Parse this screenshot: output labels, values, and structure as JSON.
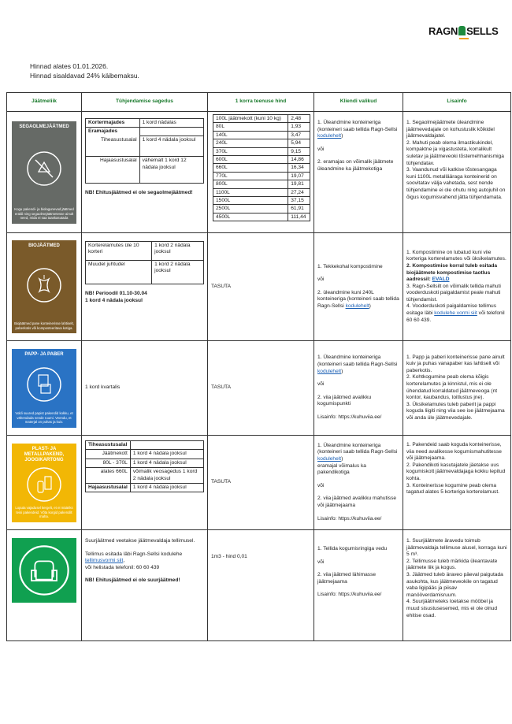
{
  "brand": {
    "logo_text_left": "RAGN",
    "logo_text_right": "SELLS"
  },
  "intro": {
    "line1": "Hinnad alates 01.01.2026.",
    "line2": "Hinnad sisaldavad 24% käibemaksu."
  },
  "headers": [
    "Jäätmeliik",
    "Tühjendamise sagedus",
    "1 korra teenuse hind",
    "Kliendi valikud",
    "Lisainfo"
  ],
  "colors": {
    "header_green": "#1a7a2c",
    "mixed": "#666a66",
    "bio": "#7a5a2a",
    "paper": "#2a73c4",
    "packaging": "#f2b705",
    "bulky": "#10a050",
    "link": "#1a5fb4"
  },
  "rows": [
    {
      "badge": {
        "title": "SEGAOLMEJÄÄTMED",
        "desc": "Kogu pakendi- ja biolagunevad jäätmed eraldi ning segaolmejäätmetesse ainult need, mida ei saa taaskasutada",
        "icon": "no-recycle-icon"
      },
      "freq": {
        "rows": [
          [
            "Kortermajades",
            "1 kord nädalas"
          ],
          [
            "Eramajades",
            ""
          ],
          [
            "Tiheasustusalal",
            "1 kord 4 nädala jooksul"
          ],
          [
            "Hajaasustusalal",
            "vähemalt 1 kord 12 nädala jooksul"
          ]
        ],
        "note": "NB! Ehitusjäätmed ei ole segaolmejäätmed!"
      },
      "prices": [
        [
          "100L jäätmekott (kuni 10 kg)",
          "2,48"
        ],
        [
          "80L",
          "1,93"
        ],
        [
          "140L",
          "3,47"
        ],
        [
          "240L",
          "5,94"
        ],
        [
          "370L",
          "9,15"
        ],
        [
          "600L",
          "14,86"
        ],
        [
          "660L",
          "16,34"
        ],
        [
          "770L",
          "19,07"
        ],
        [
          "800L",
          "19,81"
        ],
        [
          "1100L",
          "27,24"
        ],
        [
          "1500L",
          "37,15"
        ],
        [
          "2500L",
          "61,91"
        ],
        [
          "4500L",
          "111,44"
        ]
      ],
      "options": {
        "p1": "1. Üleandmine konteineriga (konteineri saab tellida Ragn-Sellsi",
        "link": "kodulehelt",
        "p1_end": ")",
        "or": "või",
        "p2": "2. eramajas on võimalik jäätmete üleandmine ka jäätmekotiga"
      },
      "info": [
        "1. Segaolmejäätmete üleandmine jäätmevedajale on kohustuslik kõikidel jäätmevaldajatel.",
        "2. Mahuti peab olema ilmastikukindel, kompaktne ja vigastusteta, korralikult suletav ja jäätmeveoki tõstemehhanismiga tühjendatav.",
        "3. Vaandunud või katkise tõstesangaga kuni 1100L metallääraga konteinerid on soovitatav välja vahetada, sest nende tühjendamine ei ole ohutu ning autojuhil on õigus kogumisvahend jätta tühjendamata."
      ]
    },
    {
      "badge": {
        "title": "BIOJÄÄTMED",
        "desc": "Biojäätmed pane konteinerisse lahtiselt, paberkotis või komposteeritava kotiga.",
        "icon": "apple-core-icon"
      },
      "freq": {
        "rows": [
          [
            "Korterelamutes üle 10 korteri",
            "1 kord 2 nädala jooksul"
          ],
          [
            "Muudel juhtudel",
            "1 kord 2 nädala jooksul"
          ]
        ],
        "note1": "NB! Perioodil 01.10-30.04",
        "note2": "1 kord 4 nädala jooksul"
      },
      "price": "TASUTA",
      "options": {
        "p1": "1. Tekkekohal kompostimine",
        "or": "või",
        "p2": "2. üleandmine kuni 240L konteineriga (konteineri saab tellida Ragn-Sellsi",
        "link": "kodulehelt",
        "p2_end": ")"
      },
      "info": {
        "i1": "1. Kompostimine on lubatud kuni viie korteriga korterelamutes või üksikelamutes.",
        "i2_bold": "2. Kompostimise korral tuleb esitada biojäätmete kompostimise taotlus aadressil:",
        "i2_link": "EVALD",
        "i3": "3. Ragn-Sellsilt on võimalik tellida mahuti vooderduskoti paigaldamist peale mahuti tühjendamist.",
        "i4": "4. Vooderduskoti paigaldamise tellimus esitage läbi",
        "i4_link": "kodulehe vormi siit",
        "i4_end": "või telefonil 60 60 439."
      }
    },
    {
      "badge": {
        "title": "PAPP- JA PABER",
        "desc": "Voldi suured papist pakendid kokku, et vähendada nende ruumi. Veendu, et materjal on puhas ja kuiv.",
        "icon": "paper-box-icon"
      },
      "freq": "1 kord kvartalis",
      "price": "TASUTA",
      "options": {
        "p1": "1. Üleandmine konteineriga (konteineri saab tellida Ragn-Sellsi",
        "link": "kodulehelt",
        "p1_end": ")",
        "or": "või",
        "p2": "2. viia jäätmed avalikku kogumispunkti",
        "more": "Lisainfo: https://kuhuviia.ee/"
      },
      "info": [
        "1. Papp ja paberi konteinerisse pane ainult kuiv ja puhas vanapaber kas lahtiselt või paberkotis.",
        "2. Kohtkogumine peab olema kõigis korterelamutes ja kinnistul, mis ei ole ühendatud korraldatud jäätmeveoga (nt kontor, kaubandus, toitlustus jne).",
        "3. Üksikelamutes tuleb paberit ja pappi koguda liigiti ning viia see ise jäätmejaama või anda üle jäätmevedajale."
      ]
    },
    {
      "badge": {
        "title": "PLAST- JA METALLPAKEND, JOOGIKARTONG",
        "desc": "Loputa vajadusel kergelt, et ei määriks teisi pakendeid. Võta korgid pakendilt maha.",
        "icon": "packaging-icon"
      },
      "freq": {
        "rows": [
          [
            "Tiheasustusalal",
            ""
          ],
          [
            "Jäätmekott",
            "1 kord 4 nädala jooksul"
          ],
          [
            "80L - 370L",
            "1 kord 4 nädala jooksul"
          ],
          [
            "alates 660L",
            "võimalik veosagedus 1 kord 2 nädala jooksul"
          ],
          [
            "Hajaasustusalal",
            "1 kord 4 nädala jooksul"
          ]
        ]
      },
      "price": "TASUTA",
      "options": {
        "p1": "1. Üleandmine konteineriga (konteineri saab tellida Ragn-Sellsi",
        "link": "kodulehelt",
        "p1_end": ")",
        "p1b": "eramajal võimalus ka pakendikotiga",
        "or": "või",
        "p2": "2. viia jäätmed avalikku mahutisse või jäätmejaama",
        "more": "Lisainfo: https://kuhuviia.ee/"
      },
      "info": [
        "1. Pakendeid saab koguda konteinerisse, viia need avalikesse kogumismahutitesse või jäätmejaama.",
        "2. Pakendikoti kasutajatele jäetakse uus kogumiskott jäätmevaldajaga kokku lepitud kohta.",
        "3. Konteinerisse kogumine peab olema tagatud alates 5 korteriga korterelamust."
      ]
    },
    {
      "badge": {
        "title": "",
        "desc": "",
        "icon": "armchair-icon"
      },
      "freq": {
        "p1": "Suurjäätmed veetakse jäätmevaldaja tellimusel.",
        "p2": "Tellimus esitada läbi Ragn-Sellsi kodulehe",
        "link": "tellimusvormi siit",
        "p2_end": ",",
        "p3": "või helistada telefonil: 60 60 439",
        "note": "NB! Ehitusjäätmed ei ole suurjäätmed!"
      },
      "price": "1m3 - hind 0,01",
      "options": {
        "p1": "1. Tellida kogumisringiga vedu",
        "or": "või",
        "p2": "2. viia jäätmed lähimasse jäätmejaama",
        "more": "Lisainfo: https://kuhuviia.ee/"
      },
      "info": [
        "1. Suurjäätmete äravedu toimub jäätmevaldaja tellimuse alusel, korraga kuni 5 m³.",
        "2. Tellimusse tuleb märkida üleantavate jäätmete liik ja kogus.",
        "3. Jäätmed tuleb äraveo päeval paigutada asukohta, kus jäätmeveokile on tagatud vaba ligipääs ja piisav manööverdamisruum.",
        "4. Suurjäätmeteks loetakse mööbel ja muud sisustusesemed, mis ei ole olnud ehitise osad."
      ]
    }
  ]
}
